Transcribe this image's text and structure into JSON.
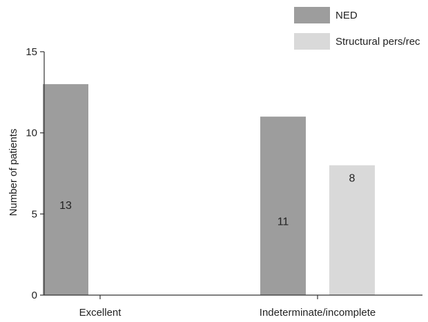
{
  "chart_data": {
    "type": "bar",
    "categories": [
      "Excellent",
      "Indeterminate/incomplete"
    ],
    "series": [
      {
        "name": "NED",
        "values": [
          13,
          11
        ],
        "color": "#9d9d9d"
      },
      {
        "name": "Structural pers/rec",
        "values": [
          0,
          8
        ],
        "color": "#d9d9d9"
      }
    ],
    "data_labels": [
      [
        "13",
        "11"
      ],
      [
        null,
        "8"
      ]
    ],
    "ylabel": "Number of patients",
    "ylim": [
      0,
      15
    ],
    "yticks": [
      0,
      5,
      10,
      15
    ],
    "grid": false,
    "legend_position": "top-right"
  }
}
